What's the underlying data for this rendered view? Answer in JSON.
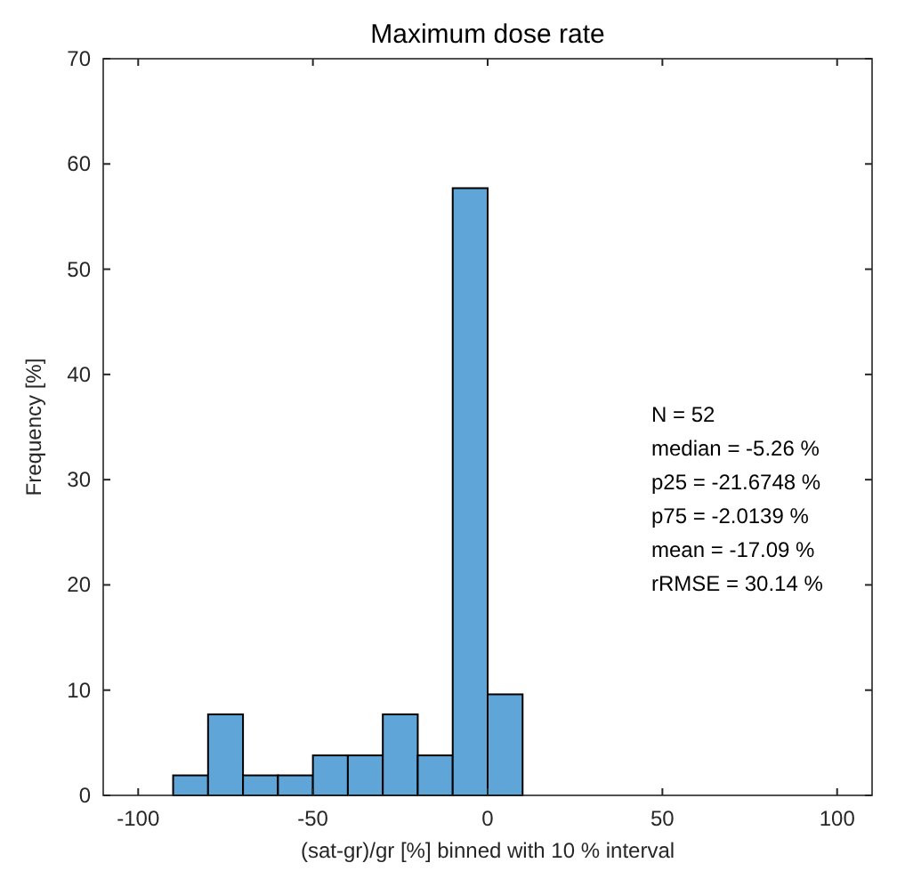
{
  "chart_data": {
    "type": "histogram",
    "title": "Maximum dose rate",
    "xlabel": "(sat-gr)/gr [%] binned with 10 % interval",
    "ylabel": "Frequency [%]",
    "bins": [
      -110,
      -100,
      -90,
      -80,
      -70,
      -60,
      -50,
      -40,
      -30,
      -20,
      -10,
      0,
      10,
      20,
      30,
      40,
      50,
      60,
      70,
      80,
      90,
      100,
      110
    ],
    "values": [
      0,
      0,
      1.9,
      7.7,
      1.9,
      1.9,
      3.8,
      3.8,
      7.7,
      3.8,
      57.7,
      9.6,
      0,
      0,
      0,
      0,
      0,
      0,
      0,
      0,
      0,
      0
    ],
    "color": "#5fa5d8",
    "xlim": [
      -110,
      110
    ],
    "xticks": [
      -100,
      -50,
      0,
      50,
      100
    ],
    "ylim": [
      0,
      70
    ],
    "yticks": [
      0,
      10,
      20,
      30,
      40,
      50,
      60,
      70
    ],
    "grid": false,
    "annotations": [
      "N = 52",
      "median = -5.26 %",
      "p25 = -21.6748 %",
      "p75 = -2.0139 %",
      "mean = -17.09 %",
      "rRMSE = 30.14 %"
    ]
  }
}
